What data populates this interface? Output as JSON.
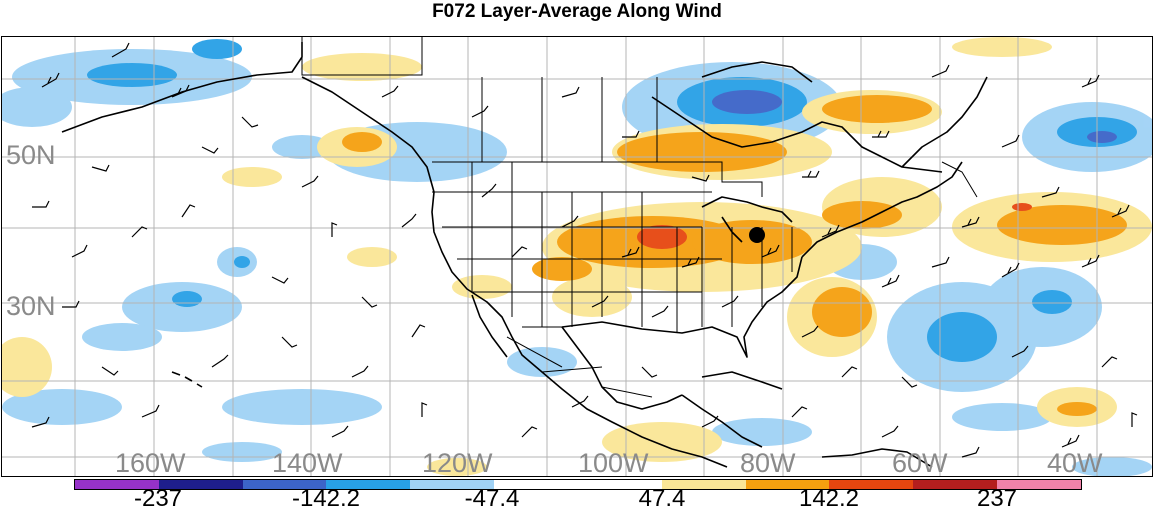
{
  "title": "F072 Layer-Average Along Wind",
  "lat_labels": [
    "50N",
    "30N"
  ],
  "lon_labels": [
    "160W",
    "140W",
    "120W",
    "100W",
    "80W",
    "60W",
    "40W"
  ],
  "colorbar": {
    "colors": [
      "#9632c8",
      "#1e1e8c",
      "#3c64c8",
      "#28a0e6",
      "#a0d2f5",
      "#ffffff",
      "#ffffff",
      "#fae696",
      "#f5a00f",
      "#e6460f",
      "#b41e1e",
      "#f082aa"
    ],
    "labels": [
      "-237",
      "-142.2",
      "-47.4",
      "47.4",
      "142.2",
      "237"
    ]
  }
}
